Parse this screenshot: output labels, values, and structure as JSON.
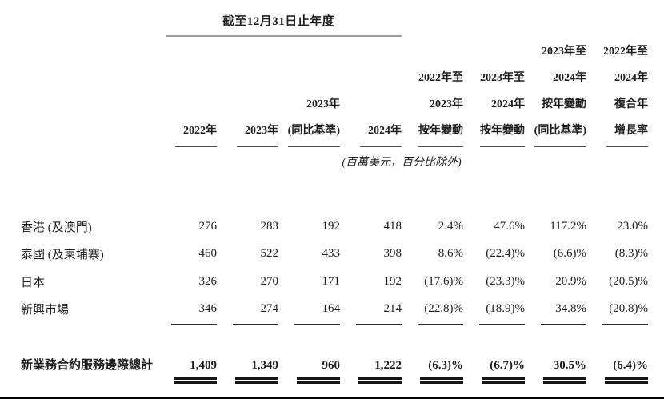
{
  "table": {
    "period_spanner": "截至12月31日止年度",
    "unit_note": "(百萬美元，百分比除外)",
    "column_headers": [
      {
        "lines": [
          "2022年"
        ]
      },
      {
        "lines": [
          "2023年"
        ]
      },
      {
        "lines": [
          "2023年",
          "(同比基準)"
        ]
      },
      {
        "lines": [
          "2024年"
        ]
      },
      {
        "lines": [
          "2022年至",
          "2023年",
          "按年變動"
        ]
      },
      {
        "lines": [
          "2023年至",
          "2024年",
          "按年變動"
        ]
      },
      {
        "lines": [
          "2023年至",
          "2024年",
          "按年變動",
          "(同比基準)"
        ]
      },
      {
        "lines": [
          "2022年至",
          "2024年",
          "複合年",
          "增長率"
        ]
      }
    ],
    "rows": [
      {
        "label": "香港 (及澳門)",
        "values": [
          "276",
          "283",
          "192",
          "418",
          "2.4%",
          "47.6%",
          "117.2%",
          "23.0%"
        ]
      },
      {
        "label": "泰國 (及柬埔寨)",
        "values": [
          "460",
          "522",
          "433",
          "398",
          "8.6%",
          "(22.4)%",
          "(6.6)%",
          "(8.3)%"
        ]
      },
      {
        "label": "日本",
        "values": [
          "326",
          "270",
          "171",
          "192",
          "(17.6)%",
          "(23.3)%",
          "20.9%",
          "(20.5)%"
        ]
      },
      {
        "label": "新興市場",
        "values": [
          "346",
          "274",
          "164",
          "214",
          "(22.8)%",
          "(18.9)%",
          "34.8%",
          "(20.8)%"
        ]
      }
    ],
    "total_row": {
      "label": "新業務合約服務邊際總計",
      "values": [
        "1,409",
        "1,349",
        "960",
        "1,222",
        "(6.3)%",
        "(6.7)%",
        "30.5%",
        "(6.4)%"
      ]
    }
  }
}
